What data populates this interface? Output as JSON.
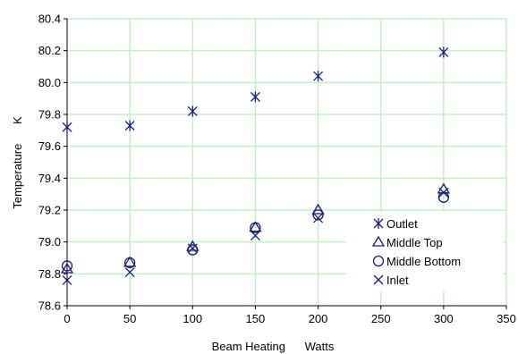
{
  "chart_data": {
    "type": "scatter",
    "title": "",
    "xlabel": "Beam Heating      Watts",
    "ylabel": "Temperature      K",
    "xlim": [
      0,
      350
    ],
    "ylim": [
      78.6,
      80.4
    ],
    "x_ticks": [
      "0",
      "50",
      "100",
      "150",
      "200",
      "250",
      "300",
      "350"
    ],
    "y_ticks": [
      "78.6",
      "78.8",
      "79.0",
      "79.2",
      "79.4",
      "79.6",
      "79.8",
      "80.0",
      "80.2",
      "80.4"
    ],
    "grid": true,
    "grid_color": "#c6efc6",
    "marker_color": "#1a1a7a",
    "legend_position": "right",
    "series": [
      {
        "name": "Outlet",
        "marker": "asterisk",
        "x": [
          0,
          50,
          100,
          150,
          200,
          300
        ],
        "y": [
          79.72,
          79.73,
          79.82,
          79.91,
          80.04,
          80.19
        ]
      },
      {
        "name": "Middle Top",
        "marker": "triangle",
        "x": [
          0,
          50,
          100,
          150,
          200,
          300
        ],
        "y": [
          78.83,
          78.87,
          78.97,
          79.09,
          79.2,
          79.33
        ]
      },
      {
        "name": "Middle Bottom",
        "marker": "circle",
        "x": [
          0,
          50,
          100,
          150,
          200,
          300
        ],
        "y": [
          78.85,
          78.87,
          78.95,
          79.09,
          79.17,
          79.28
        ]
      },
      {
        "name": "Inlet",
        "marker": "x",
        "x": [
          0,
          50,
          100,
          150,
          200,
          300
        ],
        "y": [
          78.76,
          78.81,
          78.96,
          79.04,
          79.15,
          79.31
        ]
      }
    ]
  }
}
